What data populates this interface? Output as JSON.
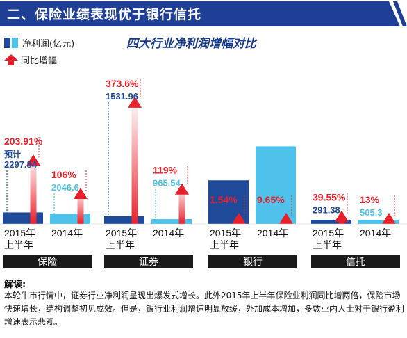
{
  "header": {
    "title": "二、保险业绩表现优于银行信托"
  },
  "legend": {
    "net_profit": "净利润(亿元)",
    "yoy": "同比增幅"
  },
  "chart_data": {
    "type": "bar",
    "title": "四大行业净利润增幅对比",
    "series": [
      {
        "name": "净利润(亿元)",
        "colors": [
          "#1f4a9a",
          "#4ec2ea"
        ]
      },
      {
        "name": "同比增幅",
        "color": "#e8202a"
      }
    ],
    "groups": [
      {
        "name": "保险",
        "bars": [
          {
            "period_lines": [
              "2015年",
              "上半年"
            ],
            "value": 2297.84,
            "value_label": "2297.84",
            "note": "预计",
            "growth": 203.91,
            "growth_label": "203.91%",
            "color": "dark"
          },
          {
            "period_lines": [
              "2014年"
            ],
            "value": 2046.6,
            "value_label": "2046.6",
            "growth": 106,
            "growth_label": "106%",
            "color": "light"
          }
        ]
      },
      {
        "name": "证券",
        "bars": [
          {
            "period_lines": [
              "2015年",
              "上半年"
            ],
            "value": 1531.96,
            "value_label": "1531.96",
            "growth": 373.6,
            "growth_label": "373.6%",
            "color": "dark"
          },
          {
            "period_lines": [
              "2014年"
            ],
            "value": 965.54,
            "value_label": "965.54",
            "growth": 119,
            "growth_label": "119%",
            "color": "light"
          }
        ]
      },
      {
        "name": "银行",
        "bars": [
          {
            "period_lines": [
              "2015年",
              "上半年"
            ],
            "value": 8715,
            "value_label": "8715",
            "growth": 1.54,
            "growth_label": "1.54%",
            "color": "dark"
          },
          {
            "period_lines": [
              "2014年"
            ],
            "value": 15500,
            "value_label": "1.55万",
            "growth": 9.65,
            "growth_label": "9.65%",
            "color": "light"
          }
        ]
      },
      {
        "name": "信托",
        "bars": [
          {
            "period_lines": [
              "2015年",
              "上半年"
            ],
            "value": 291.38,
            "value_label": "291.38",
            "growth": 39.55,
            "growth_label": "39.55%",
            "color": "dark"
          },
          {
            "period_lines": [
              "2014年"
            ],
            "value": 505.3,
            "value_label": "505.3",
            "growth": 13,
            "growth_label": "13%",
            "color": "light"
          }
        ]
      }
    ]
  },
  "description": {
    "label": "解读:",
    "text": "本轮牛市行情中，证券行业净利润呈现出爆发式增长。此外2015年上半年保险业利润同比增两倍，保险市场快速增长，结构调整初见成效。但是，银行业利润增速明显放缓，外加成本增加，多数业内人士对于银行盈利增速表示悲观。"
  }
}
